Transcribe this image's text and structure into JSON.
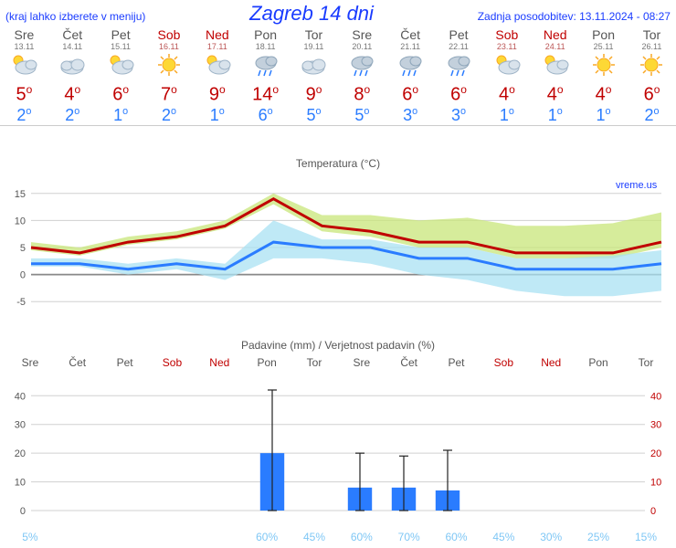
{
  "header": {
    "menu_note": "(kraj lahko izberete v meniju)",
    "title": "Zagreb 14 dni",
    "updated": "Zadnja posodobitev: 13.11.2024 - 08:27"
  },
  "days": [
    {
      "name": "Sre",
      "md": "13.11",
      "weekend": false,
      "icon": "partly",
      "high": 5,
      "low": 2
    },
    {
      "name": "Čet",
      "md": "14.11",
      "weekend": false,
      "icon": "cloudy",
      "high": 4,
      "low": 2
    },
    {
      "name": "Pet",
      "md": "15.11",
      "weekend": false,
      "icon": "partly",
      "high": 6,
      "low": 1
    },
    {
      "name": "Sob",
      "md": "16.11",
      "weekend": true,
      "icon": "sunny",
      "high": 7,
      "low": 2
    },
    {
      "name": "Ned",
      "md": "17.11",
      "weekend": true,
      "icon": "partly",
      "high": 9,
      "low": 1
    },
    {
      "name": "Pon",
      "md": "18.11",
      "weekend": false,
      "icon": "rain",
      "high": 14,
      "low": 6
    },
    {
      "name": "Tor",
      "md": "19.11",
      "weekend": false,
      "icon": "cloudy",
      "high": 9,
      "low": 5
    },
    {
      "name": "Sre",
      "md": "20.11",
      "weekend": false,
      "icon": "rain",
      "high": 8,
      "low": 5
    },
    {
      "name": "Čet",
      "md": "21.11",
      "weekend": false,
      "icon": "rain",
      "high": 6,
      "low": 3
    },
    {
      "name": "Pet",
      "md": "22.11",
      "weekend": false,
      "icon": "rain",
      "high": 6,
      "low": 3
    },
    {
      "name": "Sob",
      "md": "23.11",
      "weekend": true,
      "icon": "partly",
      "high": 4,
      "low": 1
    },
    {
      "name": "Ned",
      "md": "24.11",
      "weekend": true,
      "icon": "partly",
      "high": 4,
      "low": 1
    },
    {
      "name": "Pon",
      "md": "25.11",
      "weekend": false,
      "icon": "sunny",
      "high": 4,
      "low": 1
    },
    {
      "name": "Tor",
      "md": "26.11",
      "weekend": false,
      "icon": "sunny",
      "high": 6,
      "low": 2
    }
  ],
  "temp_chart": {
    "title": "Temperatura (°C)",
    "attribution": "vreme.us",
    "ylim": [
      -8,
      18
    ],
    "yticks": [
      -5,
      0,
      5,
      10,
      15
    ],
    "grid_color": "#d0d0d0",
    "zero_line_color": "#888888",
    "band_upper_fill": "#c8e67a",
    "band_lower_fill": "#a9e2f3",
    "high_line_color": "#c00000",
    "low_line_color": "#2a7cff",
    "high_line": [
      5,
      4,
      6,
      7,
      9,
      14,
      9,
      8,
      6,
      6,
      4,
      4,
      4,
      6
    ],
    "low_line": [
      2,
      2,
      1,
      2,
      1,
      6,
      5,
      5,
      3,
      3,
      1,
      1,
      1,
      2
    ],
    "upper_band_top": [
      6,
      5,
      7,
      8,
      10,
      15,
      11,
      11,
      10,
      10.5,
      9,
      9,
      9.5,
      11.5
    ],
    "upper_band_bottom": [
      4.5,
      3.5,
      5.5,
      6.5,
      8.5,
      13,
      8,
      7,
      5,
      5,
      3,
      3,
      3,
      5
    ],
    "lower_band_top": [
      3,
      3,
      2,
      3,
      2,
      10,
      6.5,
      6.5,
      5,
      5,
      3,
      3,
      3.5,
      4.5
    ],
    "lower_band_bottom": [
      1.5,
      1.5,
      0,
      1,
      -1,
      3,
      3,
      2,
      0,
      -1,
      -3,
      -4,
      -4,
      -3
    ]
  },
  "precip_chart": {
    "title": "Padavine (mm) / Verjetnost padavin (%)",
    "ylim": [
      0,
      42
    ],
    "yticks": [
      0,
      10,
      20,
      30,
      40
    ],
    "grid_color": "#d0d0d0",
    "bar_color": "#2a7cff",
    "whisker_color": "#222222",
    "bars": [
      0,
      0,
      0,
      0,
      0,
      20,
      0,
      8,
      8,
      7,
      0,
      0,
      0,
      0
    ],
    "whisker_top": [
      0,
      0,
      0,
      0,
      0,
      42,
      0,
      20,
      19,
      21,
      0,
      0,
      0,
      0
    ],
    "probability_color": "#7fc7f5",
    "probability": [
      "5%",
      "",
      "",
      "",
      "",
      "60%",
      "45%",
      "60%",
      "70%",
      "60%",
      "45%",
      "30%",
      "25%",
      "15%"
    ]
  }
}
